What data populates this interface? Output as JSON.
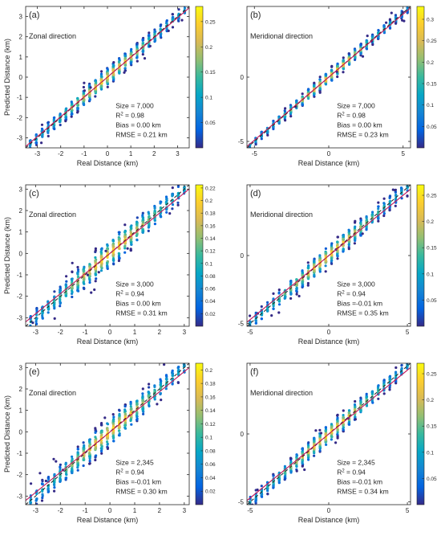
{
  "figure": {
    "colormap": [
      "#352a87",
      "#0363e1",
      "#1485d4",
      "#06a7c6",
      "#38b99e",
      "#92bf73",
      "#d9ba56",
      "#fcce2e",
      "#f9fb0e"
    ],
    "fit_line_color": "#c2185b",
    "identity_line_color": "#222222"
  },
  "chart_data": [
    {
      "type": "scatter",
      "panel": "(a)",
      "annotation": "Zonal direction",
      "xlabel": "Real Distance (km)",
      "ylabel": "Predicted Distance (km)",
      "xlim": [
        -3.5,
        3.5
      ],
      "ylim": [
        -3.5,
        3.5
      ],
      "xticks": [
        -3,
        -2,
        -1,
        0,
        1,
        2,
        3
      ],
      "yticks": [
        -3,
        -2,
        -1,
        0,
        1,
        2,
        3
      ],
      "colorbar": {
        "ticks": [
          0.05,
          0.1,
          0.15,
          0.2,
          0.25
        ],
        "max": 0.28
      },
      "stats": {
        "size": "Size = 7,000",
        "r2_value": "= 0.98",
        "bias": "Bias = 0.00 km",
        "rmse": "RMSE = 0.21 km"
      },
      "fit": {
        "slope": 0.98,
        "intercept": 0.0
      },
      "spread": 0.21,
      "seed": 11
    },
    {
      "type": "scatter",
      "panel": "(b)",
      "annotation": "Meridional direction",
      "xlabel": "Real Distance (km)",
      "ylabel": "",
      "xlim": [
        -5.5,
        5.5
      ],
      "ylim": [
        -5.5,
        5.5
      ],
      "xticks": [
        -5,
        0,
        5
      ],
      "yticks": [
        -5,
        0
      ],
      "colorbar": {
        "ticks": [
          0.05,
          0.1,
          0.15,
          0.2,
          0.25,
          0.3
        ],
        "max": 0.33
      },
      "stats": {
        "size": "Size = 7,000",
        "r2_value": "= 0.98",
        "bias": "Bias = 0.00 km",
        "rmse": "RMSE = 0.23 km"
      },
      "fit": {
        "slope": 0.98,
        "intercept": 0.0
      },
      "spread": 0.23,
      "seed": 22
    },
    {
      "type": "scatter",
      "panel": "(c)",
      "annotation": "Zonal direction",
      "xlabel": "Real Distance (km)",
      "ylabel": "Predicted Distance (km)",
      "xlim": [
        -3.4,
        3.2
      ],
      "ylim": [
        -3.4,
        3.2
      ],
      "xticks": [
        -3,
        -2,
        -1,
        0,
        1,
        2,
        3
      ],
      "yticks": [
        -3,
        -2,
        -1,
        0,
        1,
        2,
        3
      ],
      "colorbar": {
        "ticks": [
          0.02,
          0.04,
          0.06,
          0.08,
          0.1,
          0.12,
          0.14,
          0.16,
          0.18,
          0.2,
          0.22
        ],
        "max": 0.225
      },
      "stats": {
        "size": "Size = 3,000",
        "r2_value": "= 0.94",
        "bias": "Bias = 0.00 km",
        "rmse": "RMSE = 0.31 km"
      },
      "fit": {
        "slope": 0.94,
        "intercept": 0.0
      },
      "spread": 0.31,
      "seed": 33
    },
    {
      "type": "scatter",
      "panel": "(d)",
      "annotation": "Meridional direction",
      "xlabel": "Real Distance (km)",
      "ylabel": "",
      "xlim": [
        -5.2,
        5.2
      ],
      "ylim": [
        -5.2,
        5.2
      ],
      "xticks": [
        -5,
        0,
        5
      ],
      "yticks": [
        -5,
        0
      ],
      "colorbar": {
        "ticks": [
          0.05,
          0.1,
          0.15,
          0.2,
          0.25
        ],
        "max": 0.27
      },
      "stats": {
        "size": "Size = 3,000",
        "r2_value": "= 0.94",
        "bias": "Bias =-0.01 km",
        "rmse": "RMSE = 0.35 km"
      },
      "fit": {
        "slope": 0.94,
        "intercept": -0.01
      },
      "spread": 0.35,
      "seed": 44
    },
    {
      "type": "scatter",
      "panel": "(e)",
      "annotation": "Zonal direction",
      "xlabel": "Real Distance (km)",
      "ylabel": "Predicted Distance (km)",
      "xlim": [
        -3.4,
        3.2
      ],
      "ylim": [
        -3.4,
        3.2
      ],
      "xticks": [
        -3,
        -2,
        -1,
        0,
        1,
        2,
        3
      ],
      "yticks": [
        -3,
        -2,
        -1,
        0,
        1,
        2,
        3
      ],
      "colorbar": {
        "ticks": [
          0.02,
          0.04,
          0.06,
          0.08,
          0.1,
          0.12,
          0.14,
          0.16,
          0.18,
          0.2
        ],
        "max": 0.21
      },
      "stats": {
        "size": "Size = 2,345",
        "r2_value": "= 0.94",
        "bias": "Bias =-0.01 km",
        "rmse": "RMSE = 0.30 km"
      },
      "fit": {
        "slope": 0.94,
        "intercept": -0.01
      },
      "spread": 0.3,
      "seed": 55
    },
    {
      "type": "scatter",
      "panel": "(f)",
      "annotation": "Meridional direction",
      "xlabel": "Real Distance (km)",
      "ylabel": "",
      "xlim": [
        -5.2,
        5.2
      ],
      "ylim": [
        -5.2,
        5.2
      ],
      "xticks": [
        -5,
        0,
        5
      ],
      "yticks": [
        -5,
        0
      ],
      "colorbar": {
        "ticks": [
          0.05,
          0.1,
          0.15,
          0.2,
          0.25
        ],
        "max": 0.27
      },
      "stats": {
        "size": "Size = 2,345",
        "r2_value": "= 0.94",
        "bias": "Bias =-0.01 km",
        "rmse": "RMSE = 0.34 km"
      },
      "fit": {
        "slope": 0.94,
        "intercept": -0.01
      },
      "spread": 0.34,
      "seed": 66
    }
  ]
}
